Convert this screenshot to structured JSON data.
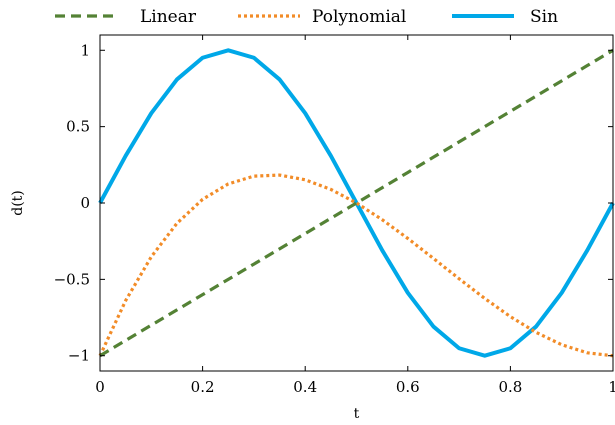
{
  "chart_data": {
    "type": "line",
    "title": "",
    "xlabel": "t",
    "ylabel": "d(t)",
    "xlim": [
      0,
      1
    ],
    "ylim": [
      -1.1,
      1.1
    ],
    "x_ticks": [
      0,
      0.2,
      0.4,
      0.6,
      0.8,
      1
    ],
    "x_tick_labels": [
      "0",
      "0.2",
      "0.4",
      "0.6",
      "0.8",
      "1"
    ],
    "y_ticks": [
      -1,
      -0.5,
      0,
      0.5,
      1
    ],
    "y_tick_labels": [
      "−1",
      "−0.5",
      "0",
      "0.5",
      "1"
    ],
    "grid": false,
    "legend_position": "top",
    "x": [
      0,
      0.05,
      0.1,
      0.15,
      0.2,
      0.25,
      0.3,
      0.35,
      0.4,
      0.45,
      0.5,
      0.55,
      0.6,
      0.65,
      0.7,
      0.75,
      0.8,
      0.85,
      0.9,
      0.95,
      1
    ],
    "series": [
      {
        "name": "Linear",
        "color": "#548235",
        "style": "dashed",
        "values": [
          -1,
          -0.9,
          -0.8,
          -0.7,
          -0.6,
          -0.5,
          -0.4,
          -0.3,
          -0.2,
          -0.1,
          0,
          0.1,
          0.2,
          0.3,
          0.4,
          0.5,
          0.6,
          0.7,
          0.8,
          0.9,
          1
        ]
      },
      {
        "name": "Polynomial",
        "color": "#F28C28",
        "style": "dotted",
        "values": [
          -1,
          -0.639,
          -0.352,
          -0.133,
          0.024,
          0.125,
          0.176,
          0.183,
          0.152,
          0.089,
          0,
          -0.109,
          -0.232,
          -0.363,
          -0.496,
          -0.625,
          -0.744,
          -0.847,
          -0.928,
          -0.981,
          -1
        ]
      },
      {
        "name": "Sin",
        "color": "#00A8E8",
        "style": "solid",
        "values": [
          0,
          0.309,
          0.588,
          0.809,
          0.951,
          1,
          0.951,
          0.809,
          0.588,
          0.309,
          0,
          -0.309,
          -0.588,
          -0.809,
          -0.951,
          -1,
          -0.951,
          -0.809,
          -0.588,
          -0.309,
          0
        ]
      }
    ]
  }
}
